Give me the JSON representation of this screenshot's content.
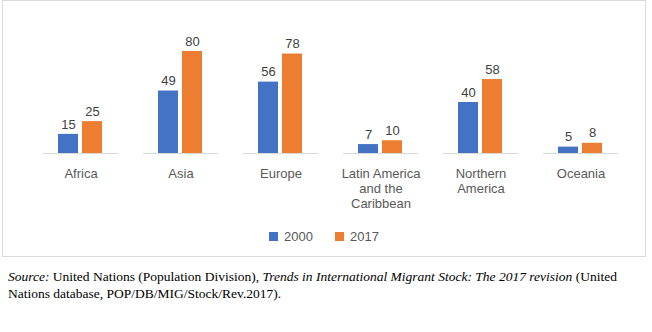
{
  "chart_data": {
    "type": "bar",
    "categories": [
      "Africa",
      "Asia",
      "Europe",
      "Latin America and the Caribbean",
      "Northern America",
      "Oceania"
    ],
    "series": [
      {
        "name": "2000",
        "color": "#4472c4",
        "values": [
          15,
          49,
          56,
          7,
          40,
          5
        ]
      },
      {
        "name": "2017",
        "color": "#ed7d31",
        "values": [
          25,
          80,
          78,
          10,
          58,
          8
        ]
      }
    ],
    "ylim": [
      0,
      80
    ],
    "data_labels": true,
    "tick_labels": "x",
    "legend": "bottom",
    "source": [
      "Source:",
      " United Nations (Population Division), ",
      "Trends in International Migrant Stock: The 2017 revision",
      " (United Nations database, POP/DB/MIG/Stock/Rev.2017)."
    ]
  }
}
